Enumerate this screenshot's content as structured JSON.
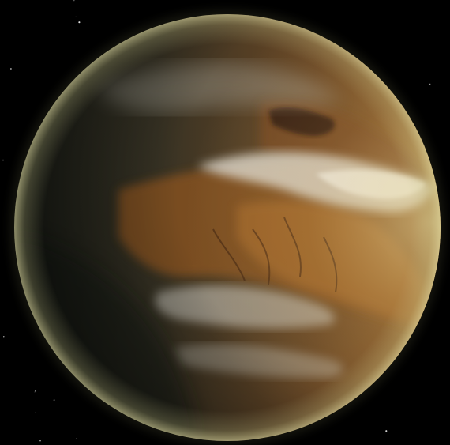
{
  "scene": {
    "subject": "planet",
    "colors": {
      "space": "#000000",
      "surface_brown": "#8a5424",
      "surface_dark": "#2a2a20",
      "ocean_dark": "#1c221c",
      "cloud_white": "#e4e2da",
      "atmosphere_glow": "#d8d49a",
      "terminator_shadow": "#050604"
    }
  }
}
